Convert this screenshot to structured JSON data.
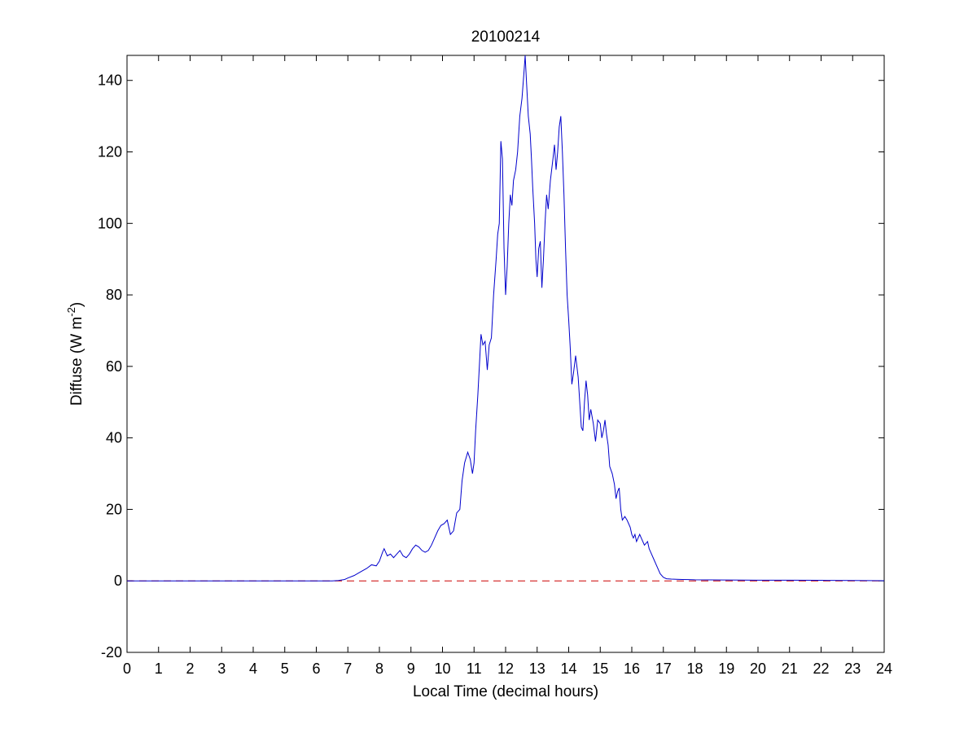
{
  "chart_data": {
    "type": "line",
    "title": "20100214",
    "xlabel": "Local Time (decimal hours)",
    "ylabel": {
      "prefix": "Diffuse (W m",
      "superscript": "-2",
      "suffix": ")"
    },
    "xlim": [
      0,
      24
    ],
    "ylim": [
      -20,
      147
    ],
    "xticks": [
      0,
      1,
      2,
      3,
      4,
      5,
      6,
      7,
      8,
      9,
      10,
      11,
      12,
      13,
      14,
      15,
      16,
      17,
      18,
      19,
      20,
      21,
      22,
      23,
      24
    ],
    "yticks": [
      -20,
      0,
      20,
      40,
      60,
      80,
      100,
      120,
      140
    ],
    "grid": false,
    "colors": {
      "series": "#0000cc",
      "reference": "#cc0000",
      "axes": "#000000"
    },
    "series": [
      {
        "color": "#0000cc",
        "style": "solid",
        "points": [
          [
            0,
            0
          ],
          [
            6.5,
            0
          ],
          [
            6.7,
            0.1
          ],
          [
            6.9,
            0.4
          ],
          [
            7.0,
            0.8
          ],
          [
            7.2,
            1.5
          ],
          [
            7.4,
            2.5
          ],
          [
            7.6,
            3.5
          ],
          [
            7.75,
            4.5
          ],
          [
            7.9,
            4.2
          ],
          [
            8.0,
            5.5
          ],
          [
            8.1,
            8
          ],
          [
            8.15,
            9
          ],
          [
            8.25,
            7
          ],
          [
            8.35,
            7.5
          ],
          [
            8.45,
            6.5
          ],
          [
            8.55,
            7.5
          ],
          [
            8.65,
            8.5
          ],
          [
            8.75,
            7
          ],
          [
            8.85,
            6.5
          ],
          [
            8.95,
            7.5
          ],
          [
            9.05,
            9
          ],
          [
            9.15,
            10
          ],
          [
            9.25,
            9.5
          ],
          [
            9.35,
            8.5
          ],
          [
            9.45,
            8
          ],
          [
            9.55,
            8.5
          ],
          [
            9.65,
            10
          ],
          [
            9.75,
            12
          ],
          [
            9.85,
            14
          ],
          [
            9.95,
            15.5
          ],
          [
            10.05,
            16
          ],
          [
            10.15,
            17
          ],
          [
            10.25,
            13
          ],
          [
            10.35,
            14
          ],
          [
            10.45,
            19
          ],
          [
            10.55,
            20
          ],
          [
            10.62,
            28
          ],
          [
            10.7,
            33
          ],
          [
            10.8,
            36
          ],
          [
            10.88,
            34
          ],
          [
            10.95,
            30
          ],
          [
            11.0,
            33
          ],
          [
            11.05,
            42
          ],
          [
            11.12,
            52
          ],
          [
            11.18,
            62
          ],
          [
            11.22,
            69
          ],
          [
            11.28,
            66
          ],
          [
            11.35,
            67
          ],
          [
            11.42,
            59
          ],
          [
            11.48,
            66
          ],
          [
            11.55,
            68
          ],
          [
            11.62,
            80
          ],
          [
            11.7,
            90
          ],
          [
            11.75,
            97
          ],
          [
            11.8,
            100
          ],
          [
            11.85,
            123
          ],
          [
            11.9,
            118
          ],
          [
            11.95,
            93
          ],
          [
            12.0,
            80
          ],
          [
            12.05,
            88
          ],
          [
            12.1,
            100
          ],
          [
            12.15,
            108
          ],
          [
            12.2,
            105
          ],
          [
            12.25,
            112
          ],
          [
            12.32,
            115
          ],
          [
            12.38,
            120
          ],
          [
            12.45,
            130
          ],
          [
            12.52,
            135
          ],
          [
            12.58,
            142
          ],
          [
            12.62,
            147
          ],
          [
            12.66,
            140
          ],
          [
            12.72,
            130
          ],
          [
            12.78,
            125
          ],
          [
            12.82,
            118
          ],
          [
            12.86,
            110
          ],
          [
            12.92,
            100
          ],
          [
            12.96,
            90
          ],
          [
            13.0,
            85
          ],
          [
            13.05,
            93
          ],
          [
            13.1,
            95
          ],
          [
            13.15,
            82
          ],
          [
            13.2,
            90
          ],
          [
            13.25,
            100
          ],
          [
            13.3,
            108
          ],
          [
            13.35,
            104
          ],
          [
            13.42,
            112
          ],
          [
            13.5,
            118
          ],
          [
            13.55,
            122
          ],
          [
            13.6,
            115
          ],
          [
            13.65,
            120
          ],
          [
            13.7,
            127
          ],
          [
            13.75,
            130
          ],
          [
            13.8,
            120
          ],
          [
            13.85,
            108
          ],
          [
            13.9,
            93
          ],
          [
            13.95,
            80
          ],
          [
            14.0,
            73
          ],
          [
            14.05,
            65
          ],
          [
            14.1,
            55
          ],
          [
            14.15,
            58
          ],
          [
            14.22,
            63
          ],
          [
            14.3,
            57
          ],
          [
            14.35,
            50
          ],
          [
            14.4,
            43
          ],
          [
            14.45,
            42
          ],
          [
            14.5,
            50
          ],
          [
            14.55,
            56
          ],
          [
            14.6,
            52
          ],
          [
            14.65,
            45
          ],
          [
            14.7,
            48
          ],
          [
            14.78,
            44
          ],
          [
            14.85,
            39
          ],
          [
            14.92,
            45
          ],
          [
            15.0,
            44
          ],
          [
            15.05,
            40
          ],
          [
            15.1,
            42
          ],
          [
            15.15,
            45
          ],
          [
            15.2,
            41
          ],
          [
            15.25,
            38
          ],
          [
            15.3,
            32
          ],
          [
            15.38,
            30
          ],
          [
            15.45,
            27
          ],
          [
            15.5,
            23
          ],
          [
            15.55,
            25
          ],
          [
            15.6,
            26
          ],
          [
            15.65,
            20
          ],
          [
            15.7,
            17
          ],
          [
            15.78,
            18
          ],
          [
            15.85,
            17
          ],
          [
            15.9,
            16
          ],
          [
            15.95,
            15
          ],
          [
            16.0,
            13
          ],
          [
            16.05,
            12
          ],
          [
            16.1,
            13
          ],
          [
            16.15,
            11
          ],
          [
            16.2,
            12
          ],
          [
            16.25,
            13
          ],
          [
            16.3,
            12
          ],
          [
            16.4,
            10
          ],
          [
            16.5,
            11
          ],
          [
            16.55,
            9
          ],
          [
            16.6,
            8
          ],
          [
            16.7,
            6
          ],
          [
            16.8,
            4
          ],
          [
            16.9,
            2
          ],
          [
            17.0,
            1
          ],
          [
            17.1,
            0.6
          ],
          [
            17.25,
            0.5
          ],
          [
            17.4,
            0.45
          ],
          [
            17.6,
            0.4
          ],
          [
            17.8,
            0.35
          ],
          [
            18.0,
            0.3
          ],
          [
            19.0,
            0.25
          ],
          [
            20.0,
            0.2
          ],
          [
            21.0,
            0.2
          ],
          [
            22.0,
            0.15
          ],
          [
            23.0,
            0.1
          ],
          [
            24.0,
            0.05
          ]
        ]
      },
      {
        "color": "#cc0000",
        "style": "dashed",
        "points": [
          [
            0,
            0
          ],
          [
            24,
            0
          ]
        ]
      }
    ]
  }
}
